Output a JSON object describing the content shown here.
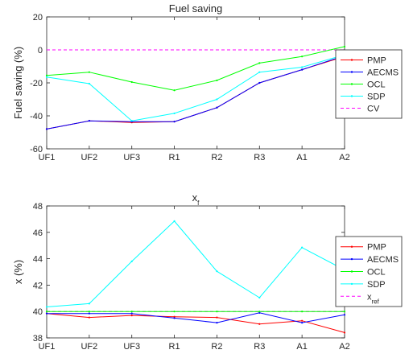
{
  "chart_data": [
    {
      "type": "line",
      "title": "Fuel saving",
      "xlabel": "",
      "ylabel": "Fuel saving (%)",
      "categories": [
        "UF1",
        "UF2",
        "UF3",
        "R1",
        "R2",
        "R3",
        "A1",
        "A2"
      ],
      "ylim": [
        -60,
        20
      ],
      "yticks": [
        "-60",
        "-40",
        "-20",
        "0",
        "20"
      ],
      "grid": false,
      "legend_position": "outside-right",
      "series": [
        {
          "name": "PMP",
          "color": "#ff0000",
          "values": [
            -48,
            -43,
            -44,
            -43.5,
            -35,
            -20,
            -12,
            -4
          ]
        },
        {
          "name": "AECMS",
          "color": "#0000ff",
          "values": [
            -48,
            -43,
            -43.5,
            -43.5,
            -35,
            -20,
            -12,
            -3.5
          ]
        },
        {
          "name": "OCL",
          "color": "#00ff00",
          "values": [
            -15.5,
            -13.5,
            -19.5,
            -24.5,
            -18.5,
            -8,
            -4,
            2
          ]
        },
        {
          "name": "SDP",
          "color": "#00ffff",
          "values": [
            -16.5,
            -20.5,
            -43,
            -38.5,
            -30,
            -13.5,
            -10.5,
            -3
          ]
        },
        {
          "name": "CV",
          "color": "#ff00ff",
          "dashed": true,
          "values": [
            0,
            0,
            0,
            0,
            0,
            0,
            0,
            0
          ]
        }
      ]
    },
    {
      "type": "line",
      "title": "x",
      "title_sub": "f",
      "xlabel": "",
      "ylabel": "x (%)",
      "categories": [
        "UF1",
        "UF2",
        "UF3",
        "R1",
        "R2",
        "R3",
        "A1",
        "A2"
      ],
      "ylim": [
        38,
        48
      ],
      "yticks": [
        "38",
        "40",
        "42",
        "44",
        "46",
        "48"
      ],
      "grid": false,
      "legend_position": "outside-right",
      "series": [
        {
          "name": "PMP",
          "color": "#ff0000",
          "values": [
            39.85,
            39.55,
            39.7,
            39.6,
            39.55,
            39.05,
            39.3,
            38.4
          ]
        },
        {
          "name": "AECMS",
          "color": "#0000ff",
          "values": [
            39.85,
            39.85,
            39.85,
            39.5,
            39.15,
            39.9,
            39.15,
            39.75
          ]
        },
        {
          "name": "OCL",
          "color": "#00ff00",
          "values": [
            40,
            40,
            40,
            40,
            40,
            40,
            40,
            40
          ]
        },
        {
          "name": "SDP",
          "color": "#00ffff",
          "values": [
            40.35,
            40.6,
            43.8,
            46.85,
            43.05,
            41.05,
            44.85,
            43.15
          ]
        },
        {
          "name": "x",
          "name_sub": "ref",
          "color": "#ff00ff",
          "dashed": true,
          "values": [
            40,
            40,
            40,
            40,
            40,
            40,
            40,
            40
          ]
        }
      ]
    }
  ]
}
